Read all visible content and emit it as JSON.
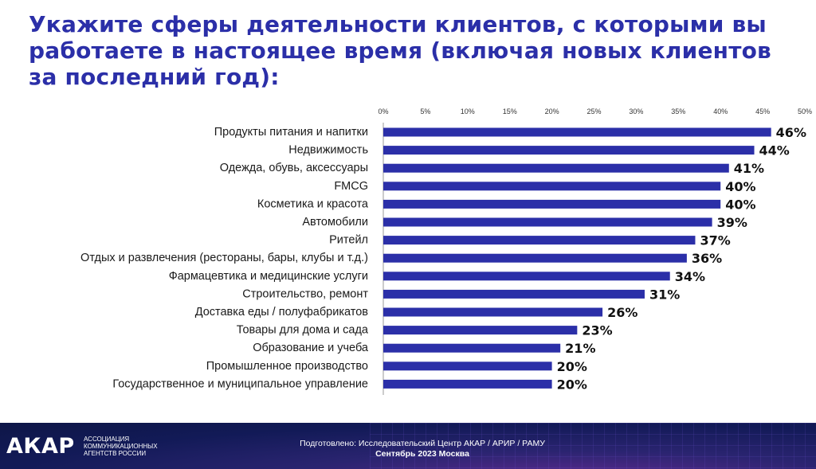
{
  "title": "Укажите сферы деятельности клиентов, с которыми вы работаете в настоящее время (включая новых клиентов за последний год):",
  "colors": {
    "title": "#2b2fa8",
    "bar": "#2b2fa8",
    "value_label": "#111111"
  },
  "chart_data": {
    "type": "bar",
    "orientation": "horizontal",
    "xlim": [
      0,
      50
    ],
    "xticks": [
      "0%",
      "5%",
      "10%",
      "15%",
      "20%",
      "25%",
      "30%",
      "35%",
      "40%",
      "45%",
      "50%"
    ],
    "categories": [
      "Продукты питания и напитки",
      "Недвижимость",
      "Одежда, обувь, аксессуары",
      "FMCG",
      "Косметика и красота",
      "Автомобили",
      "Ритейл",
      "Отдых и развлечения (рестораны, бары, клубы и т.д.)",
      "Фармацевтика и медицинские услуги",
      "Строительство, ремонт",
      "Доставка еды / полуфабрикатов",
      "Товары для дома и сада",
      "Образование и учеба",
      "Промышленное производство",
      "Государственное и муниципальное управление"
    ],
    "values": [
      46,
      44,
      41,
      40,
      40,
      39,
      37,
      36,
      34,
      31,
      26,
      23,
      21,
      20,
      20
    ],
    "value_labels": [
      "46%",
      "44%",
      "41%",
      "40%",
      "40%",
      "39%",
      "37%",
      "36%",
      "34%",
      "31%",
      "26%",
      "23%",
      "21%",
      "20%",
      "20%"
    ]
  },
  "footer": {
    "logo": "АКАР",
    "org_lines": [
      "АССОЦИАЦИЯ",
      "КОММУНИКАЦИОННЫХ",
      "АГЕНТСТВ РОССИИ"
    ],
    "prepared_by": "Подготовлено: Исследовательский Центр АКАР / АРИР / РАМУ",
    "date": "Сентябрь 2023 Москва"
  }
}
